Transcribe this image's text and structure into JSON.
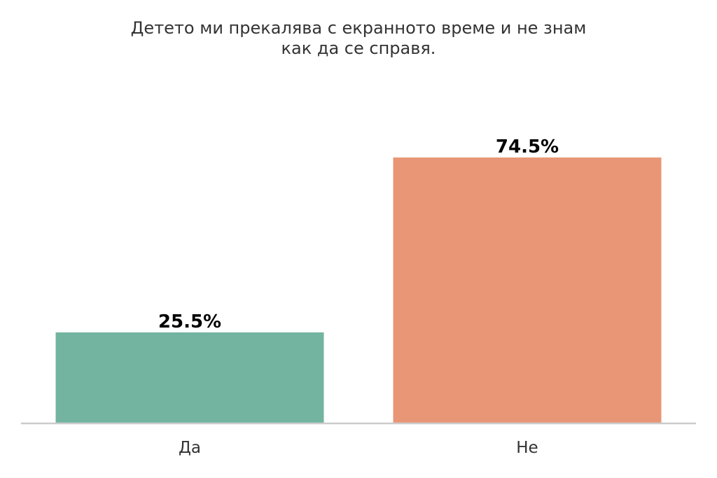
{
  "chart_data": {
    "type": "bar",
    "title_lines": [
      "Детето ми прекалява с екранното време и не знам",
      "как да се справя."
    ],
    "categories": [
      "Да",
      "Не"
    ],
    "values": [
      25.5,
      74.5
    ],
    "value_labels": [
      "25.5%",
      "74.5%"
    ],
    "colors": [
      "#73b4a0",
      "#e89675"
    ],
    "xlabel": "",
    "ylabel": "",
    "ylim": [
      0,
      100
    ],
    "grid": false,
    "legend": "none"
  }
}
